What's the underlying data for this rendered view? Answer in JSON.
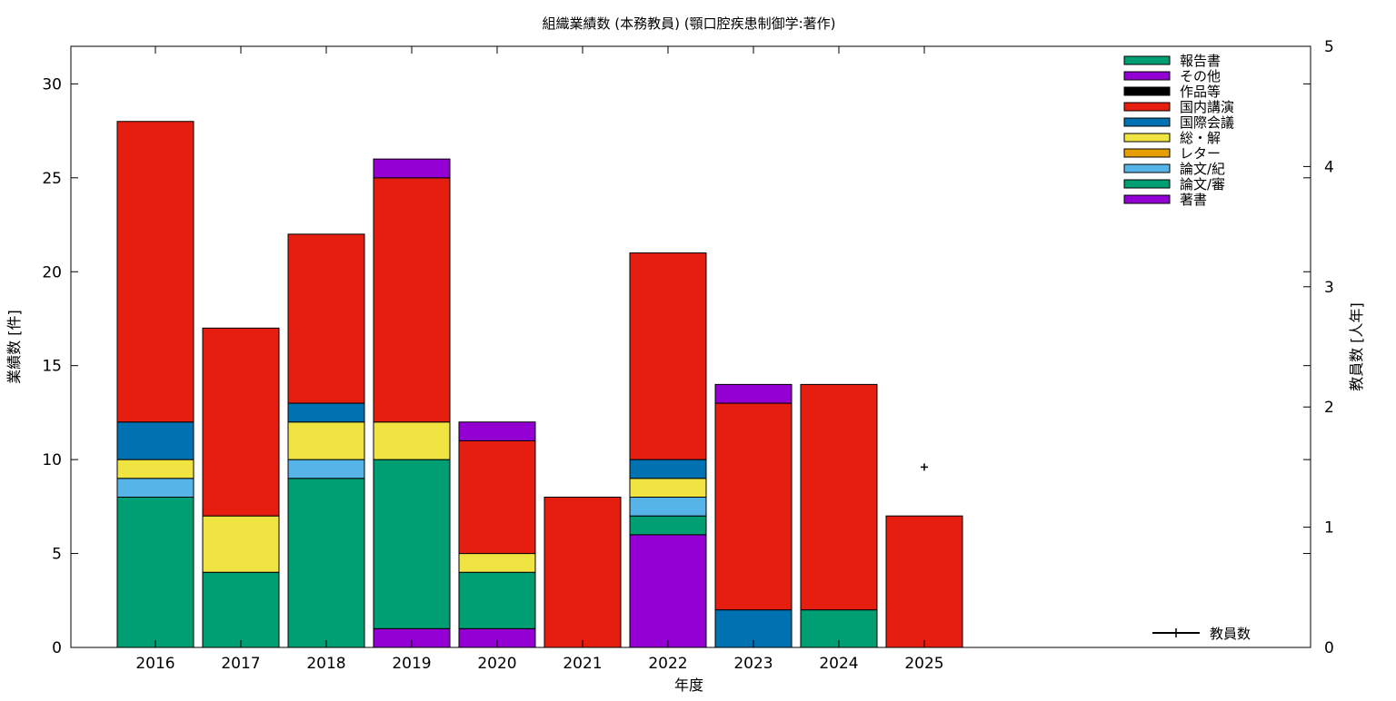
{
  "chart_data": {
    "type": "bar",
    "stacked": true,
    "title": "組織業績数 (本務教員) (顎口腔疾患制御学:著作)",
    "xlabel": "年度",
    "ylabel": "業績数 [件]",
    "y2label": "教員数 [人年]",
    "categories": [
      "2016",
      "2017",
      "2018",
      "2019",
      "2020",
      "2021",
      "2022",
      "2023",
      "2024",
      "2025"
    ],
    "ylim": [
      0,
      32
    ],
    "yticks": [
      0,
      5,
      10,
      15,
      20,
      25,
      30
    ],
    "y2lim": [
      0,
      5
    ],
    "y2ticks": [
      0,
      1,
      2,
      3,
      4,
      5
    ],
    "grid": false,
    "legend_position": "top-right",
    "series": [
      {
        "name": "著書",
        "color": "#9400d3",
        "values": [
          0,
          0,
          0,
          1,
          1,
          0,
          6,
          0,
          0,
          0
        ]
      },
      {
        "name": "論文/審",
        "color": "#009e73",
        "values": [
          8,
          4,
          9,
          9,
          3,
          0,
          1,
          0,
          2,
          0
        ]
      },
      {
        "name": "論文/紀",
        "color": "#56b4e9",
        "values": [
          1,
          0,
          1,
          0,
          0,
          0,
          1,
          0,
          0,
          0
        ]
      },
      {
        "name": "レター",
        "color": "#e69f00",
        "values": [
          0,
          0,
          0,
          0,
          0,
          0,
          0,
          0,
          0,
          0
        ]
      },
      {
        "name": "総・解",
        "color": "#f0e442",
        "values": [
          1,
          3,
          2,
          2,
          1,
          0,
          1,
          0,
          0,
          0
        ]
      },
      {
        "name": "国際会議",
        "color": "#0072b2",
        "values": [
          2,
          0,
          1,
          0,
          0,
          0,
          1,
          2,
          0,
          0
        ]
      },
      {
        "name": "国内講演",
        "color": "#e51e10",
        "values": [
          16,
          10,
          9,
          13,
          6,
          8,
          11,
          11,
          12,
          7
        ]
      },
      {
        "name": "作品等",
        "color": "#000000",
        "values": [
          0,
          0,
          0,
          0,
          0,
          0,
          0,
          0,
          0,
          0
        ]
      },
      {
        "name": "その他",
        "color": "#9400d3",
        "values": [
          0,
          0,
          0,
          1,
          1,
          0,
          0,
          1,
          0,
          0
        ]
      },
      {
        "name": "報告書",
        "color": "#009e73",
        "values": [
          0,
          0,
          0,
          0,
          0,
          0,
          0,
          0,
          0,
          0
        ]
      }
    ],
    "line_series": {
      "name": "教員数",
      "axis": "y2",
      "color": "#000000",
      "points": [
        {
          "x": "2025",
          "y": 1.5
        }
      ]
    }
  }
}
